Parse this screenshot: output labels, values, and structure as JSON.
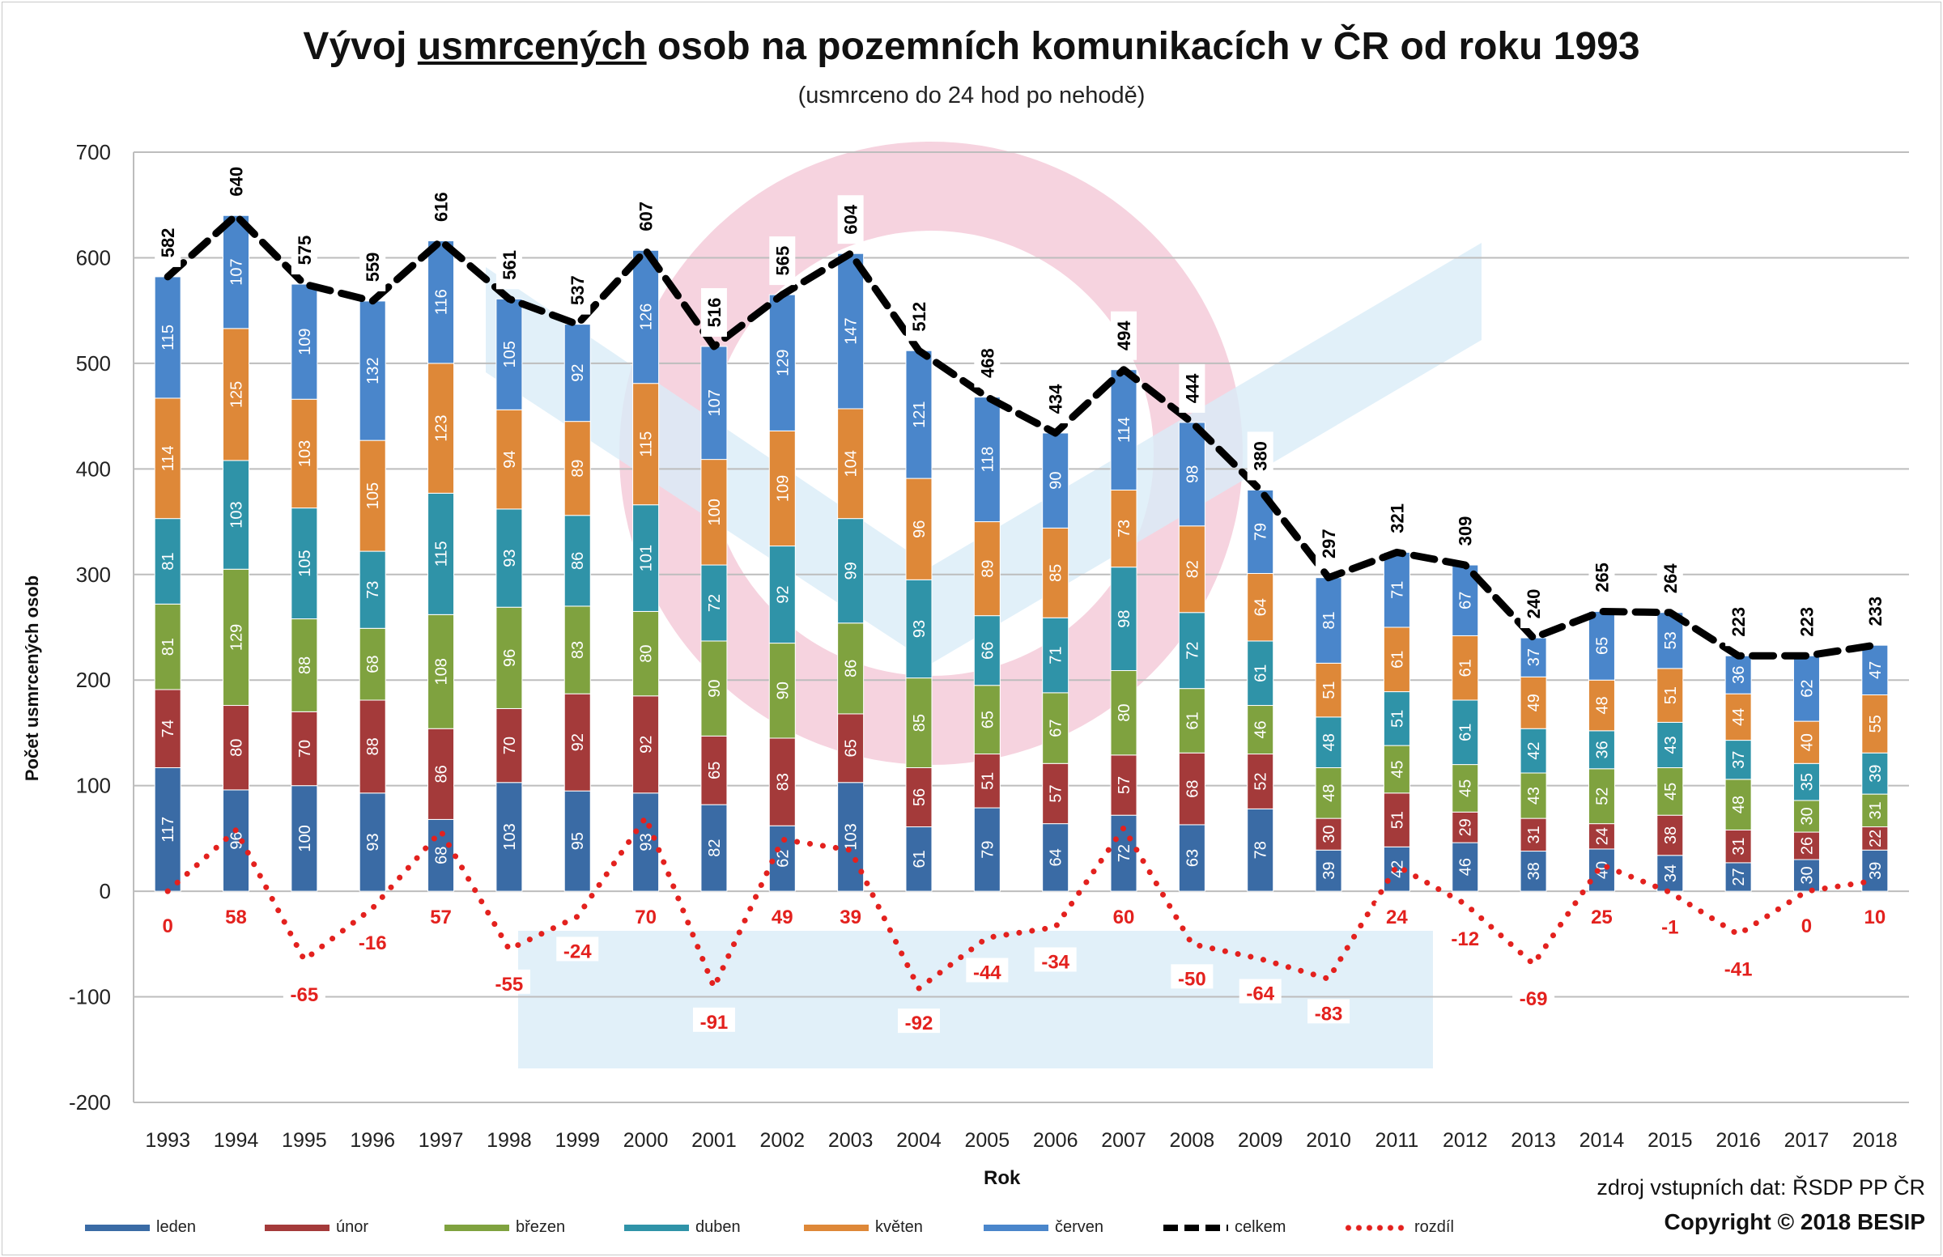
{
  "chart_data": {
    "type": "stacked-bar+line",
    "title_before": "Vývoj ",
    "title_underlined": "usmrcených",
    "title_after": " osob na pozemních komunikacích v ČR od roku 1993",
    "subtitle": "(usmrceno do 24 hod po nehodě)",
    "xlabel": "Rok",
    "ylabel": "Počet usmrcených osob",
    "ylim": [
      -200,
      700
    ],
    "yticks": [
      -200,
      -100,
      0,
      100,
      200,
      300,
      400,
      500,
      600,
      700
    ],
    "grid": true,
    "legend_position": "bottom",
    "categories": [
      "1993",
      "1994",
      "1995",
      "1996",
      "1997",
      "1998",
      "1999",
      "2000",
      "2001",
      "2002",
      "2003",
      "2004",
      "2005",
      "2006",
      "2007",
      "2008",
      "2009",
      "2010",
      "2011",
      "2012",
      "2013",
      "2014",
      "2015",
      "2016",
      "2017",
      "2018"
    ],
    "series": [
      {
        "name": "leden",
        "color": "#3A6BA5",
        "values": [
          117,
          96,
          100,
          93,
          68,
          103,
          95,
          93,
          82,
          62,
          103,
          61,
          79,
          64,
          72,
          63,
          78,
          39,
          42,
          46,
          38,
          40,
          34,
          27,
          30,
          39
        ]
      },
      {
        "name": "únor",
        "color": "#A43A3A",
        "values": [
          74,
          80,
          70,
          88,
          86,
          70,
          92,
          92,
          65,
          83,
          65,
          56,
          51,
          57,
          57,
          68,
          52,
          30,
          51,
          29,
          31,
          24,
          38,
          31,
          26,
          22
        ]
      },
      {
        "name": "březen",
        "color": "#7FA23F",
        "values": [
          81,
          129,
          88,
          68,
          108,
          96,
          83,
          80,
          90,
          90,
          86,
          85,
          65,
          67,
          80,
          61,
          46,
          48,
          45,
          45,
          43,
          52,
          45,
          48,
          30,
          31
        ]
      },
      {
        "name": "duben",
        "color": "#2F93A8",
        "values": [
          81,
          103,
          105,
          73,
          115,
          93,
          86,
          101,
          72,
          92,
          99,
          93,
          66,
          71,
          98,
          72,
          61,
          48,
          51,
          61,
          42,
          36,
          43,
          37,
          35,
          39
        ]
      },
      {
        "name": "květen",
        "color": "#DE8838",
        "values": [
          114,
          125,
          103,
          105,
          123,
          94,
          89,
          115,
          100,
          109,
          104,
          96,
          89,
          85,
          73,
          82,
          64,
          51,
          61,
          61,
          49,
          48,
          51,
          44,
          40,
          55
        ]
      },
      {
        "name": "červen",
        "color": "#4A86CB",
        "values": [
          115,
          107,
          109,
          132,
          116,
          105,
          92,
          126,
          107,
          129,
          147,
          121,
          118,
          90,
          114,
          98,
          79,
          81,
          71,
          67,
          37,
          65,
          53,
          36,
          62,
          47
        ]
      },
      {
        "name": "celkem",
        "type": "line-dashed",
        "color": "#000000",
        "values": [
          582,
          640,
          575,
          559,
          616,
          561,
          537,
          607,
          516,
          565,
          604,
          512,
          468,
          434,
          494,
          444,
          380,
          297,
          321,
          309,
          240,
          265,
          264,
          223,
          223,
          233
        ]
      },
      {
        "name": "rozdíl",
        "type": "line-dotted",
        "color": "#E3211E",
        "values": [
          0,
          58,
          -65,
          -16,
          57,
          -55,
          -24,
          70,
          -91,
          49,
          39,
          -92,
          -44,
          -34,
          60,
          -50,
          -64,
          -83,
          24,
          -12,
          -69,
          25,
          -1,
          -41,
          0,
          10
        ]
      }
    ]
  },
  "source": "zdroj vstupních dat: ŘSDP PP ČR",
  "copyright": "Copyright © 2018  BESIP",
  "watermark": "BESIP"
}
